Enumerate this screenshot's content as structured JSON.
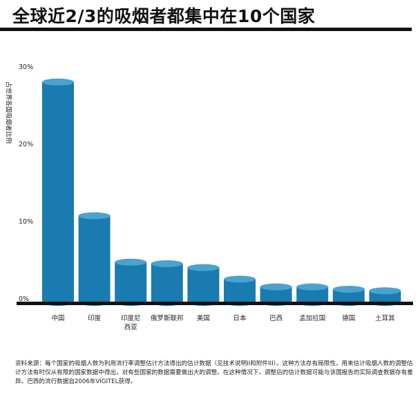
{
  "title": "全球近2/3的吸烟者都集中在10个国家",
  "source_note": "资料来源：每个国家的吸烟人数为利用流行率调整估计方法得出的估计数据（见技术说明II和附件III）。这种方法存有局限性，用来估计吸烟人数的调整估计方法有时仅从有限的国家数据中得出，对有些国家的数据需要做出大的调整。在这种情况下，调整后的估计数据可能与该国报告的实际调查数据存有差异。巴西的流行数据自2006年VIGITEL获得。",
  "colors": {
    "bar_front": "#1a7bb0",
    "bar_top": "#4aa2cf",
    "axis": "#111111"
  },
  "chart_data": {
    "type": "bar",
    "ylabel": "占世界各国吸烟者比例",
    "ylim": [
      0,
      30
    ],
    "yticks": [
      0,
      10,
      20,
      30
    ],
    "ytick_labels": [
      "0%",
      "10%",
      "20%",
      "30%"
    ],
    "categories": [
      "中国",
      "印度",
      "印度尼\n西亚",
      "俄罗斯联邦",
      "美国",
      "日本",
      "巴西",
      "孟加拉国",
      "德国",
      "土耳其"
    ],
    "values": [
      28.5,
      11.2,
      5.2,
      5.0,
      4.5,
      3.0,
      2.0,
      2.0,
      1.7,
      1.5
    ]
  }
}
